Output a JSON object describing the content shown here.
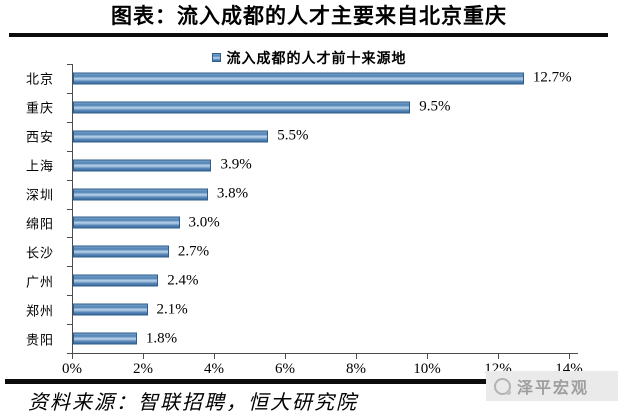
{
  "header": {
    "title": "图表：流入成都的人才主要来自北京重庆"
  },
  "legend": {
    "label": "流入成都的人才前十来源地"
  },
  "chart_data": {
    "type": "bar",
    "orientation": "horizontal",
    "title": "流入成都的人才前十来源地",
    "categories": [
      "北京",
      "重庆",
      "西安",
      "上海",
      "深圳",
      "绵阳",
      "长沙",
      "广州",
      "郑州",
      "贵阳"
    ],
    "values": [
      12.7,
      9.5,
      5.5,
      3.9,
      3.8,
      3.0,
      2.7,
      2.4,
      2.1,
      1.8
    ],
    "value_labels": [
      "12.7%",
      "9.5%",
      "5.5%",
      "3.9%",
      "3.8%",
      "3.0%",
      "2.7%",
      "2.4%",
      "2.1%",
      "1.8%"
    ],
    "xlabel": "",
    "ylabel": "",
    "xlim": [
      0,
      14
    ],
    "x_tick_step": 2,
    "x_tick_labels": [
      "0%",
      "2%",
      "4%",
      "6%",
      "8%",
      "10%",
      "12%",
      "14%"
    ],
    "grid": false,
    "legend_position": "top",
    "bar_color": "#4f80b2"
  },
  "footer": {
    "source": "资料来源：智联招聘，恒大研究院",
    "watermark": "泽平宏观"
  },
  "colors": {
    "bar_main": "#4f80b2",
    "bar_light": "#b9d3ea",
    "bar_border": "#2d5c8e",
    "rule": "#0c0c0c",
    "watermark_bg": "#eaeaea",
    "watermark_text": "#9e9e9e"
  }
}
